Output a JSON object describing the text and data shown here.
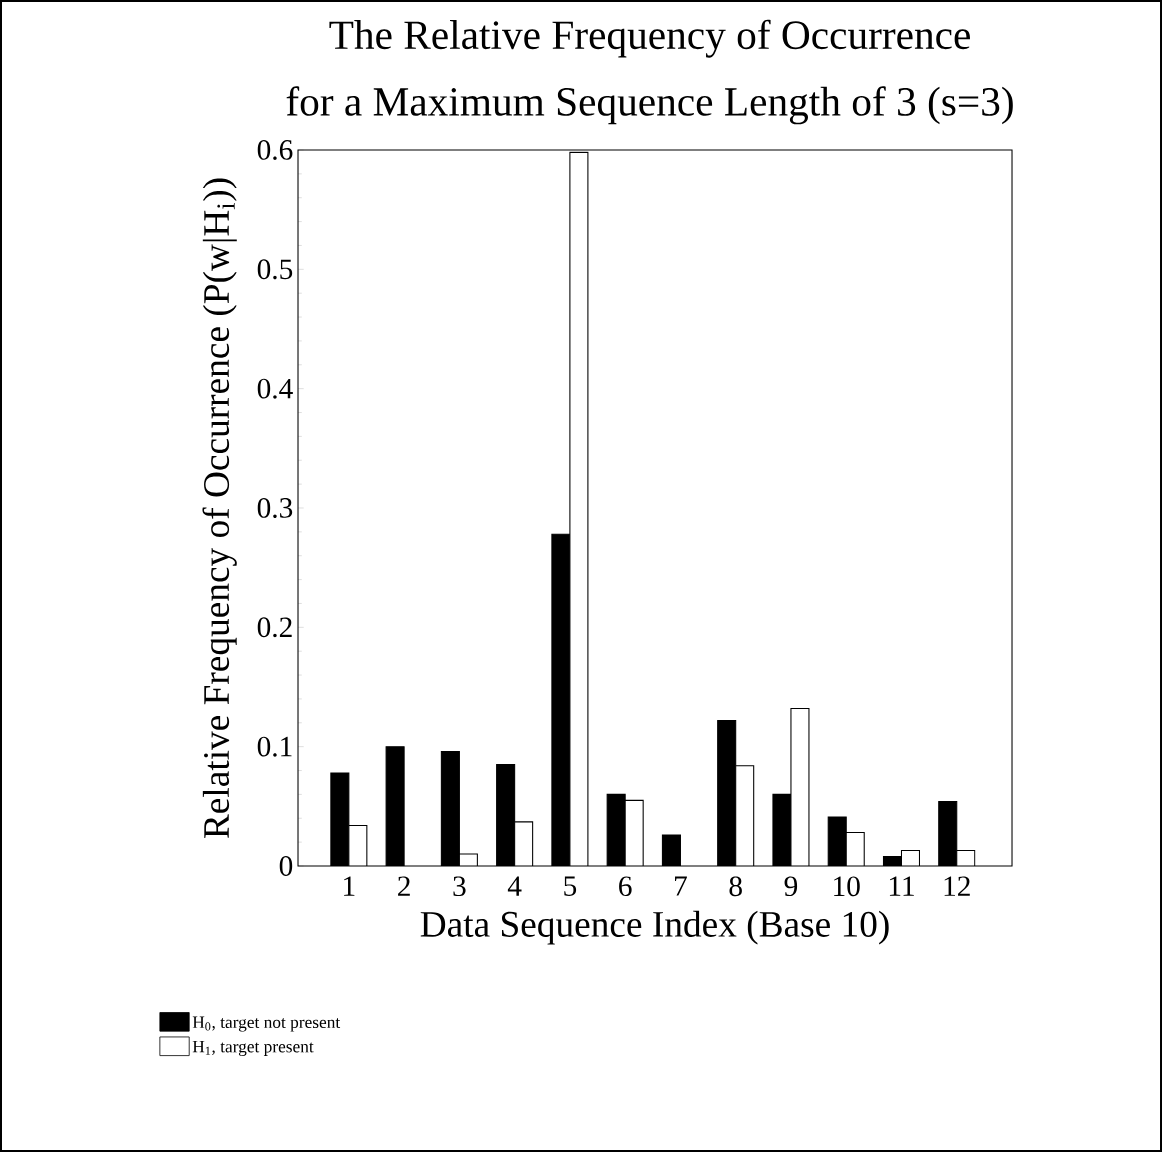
{
  "chart_data": {
    "type": "bar",
    "title": "The Relative Frequency of Occurrence\nfor a Maximum Sequence Length of 3 (s=3)",
    "xlabel": "Data Sequence Index (Base 10)",
    "ylabel": "Relative Frequency of Occurrence (P(w|H$_{i}$))",
    "categories": [
      "1",
      "2",
      "3",
      "4",
      "5",
      "6",
      "7",
      "8",
      "9",
      "10",
      "11",
      "12"
    ],
    "series": [
      {
        "name": "H$_{0}$, target not present",
        "color": "#000000",
        "values": [
          0.078,
          0.1,
          0.096,
          0.085,
          0.278,
          0.06,
          0.026,
          0.122,
          0.06,
          0.041,
          0.008,
          0.054
        ]
      },
      {
        "name": "H$_{1}$, target present",
        "color": "#ffffff",
        "values": [
          0.034,
          null,
          0.01,
          0.037,
          0.598,
          0.055,
          null,
          0.084,
          0.132,
          0.028,
          0.013,
          0.013
        ]
      }
    ],
    "ylim": [
      0,
      0.6
    ],
    "yticks": [
      0,
      0.1,
      0.2,
      0.3,
      0.4,
      0.5,
      0.6
    ],
    "grid": false,
    "legend": "bottom left"
  }
}
